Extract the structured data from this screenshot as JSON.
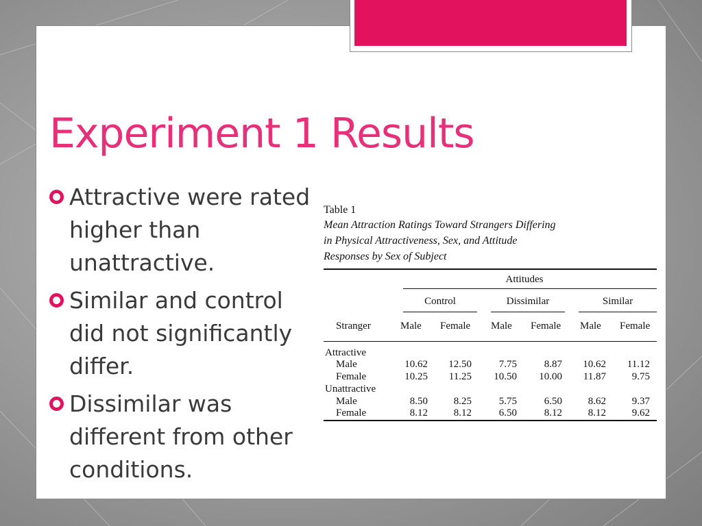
{
  "slide": {
    "title": "Experiment 1 Results",
    "bullets": [
      "Attractive were rated higher than unattractive.",
      "Similar and control did not significantly differ.",
      "Dissimilar was different from other conditions."
    ]
  },
  "table": {
    "label": "Table 1",
    "caption_lines": [
      "Mean Attraction Ratings Toward Strangers Differing",
      "in Physical Attractiveness, Sex, and Attitude",
      "Responses by Sex of Subject"
    ],
    "attitudes_header": "Attitudes",
    "groups": [
      "Control",
      "Dissimilar",
      "Similar"
    ],
    "stranger_header": "Stranger",
    "subheaders": [
      "Male",
      "Female",
      "Male",
      "Female",
      "Male",
      "Female"
    ],
    "sections": [
      {
        "name": "Attractive",
        "rows": [
          {
            "label": "Male",
            "values": [
              "10.62",
              "12.50",
              "7.75",
              "8.87",
              "10.62",
              "11.12"
            ]
          },
          {
            "label": "Female",
            "values": [
              "10.25",
              "11.25",
              "10.50",
              "10.00",
              "11.87",
              "9.75"
            ]
          }
        ]
      },
      {
        "name": "Unattractive",
        "rows": [
          {
            "label": "Male",
            "values": [
              "8.50",
              "8.25",
              "5.75",
              "6.50",
              "8.62",
              "9.37"
            ]
          },
          {
            "label": "Female",
            "values": [
              "8.12",
              "8.12",
              "6.50",
              "8.12",
              "8.12",
              "9.62"
            ]
          }
        ]
      }
    ]
  },
  "colors": {
    "accent": "#e3125f",
    "title": "#e8307a",
    "body_text": "#3a3a3a"
  },
  "icons": {
    "bullet": "circle-bullet-icon"
  }
}
